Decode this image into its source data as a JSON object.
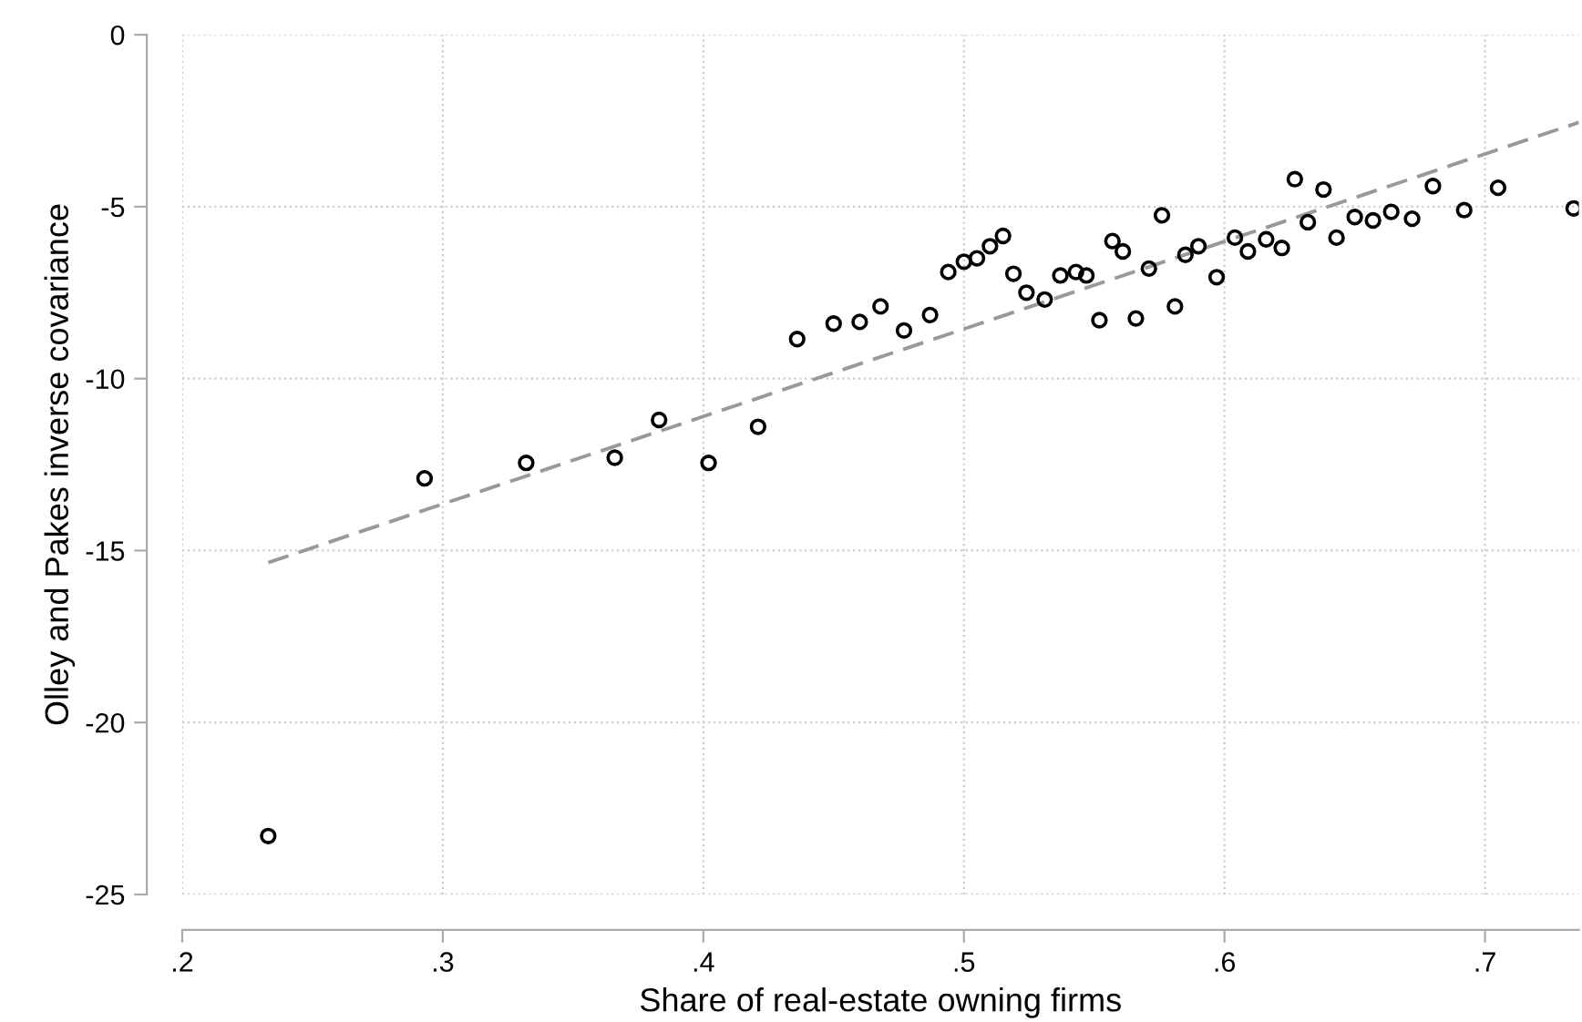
{
  "chart_data": {
    "type": "scatter",
    "xlabel": "Share of real-estate owning firms",
    "ylabel": "Olley and Pakes inverse covariance",
    "xlim": [
      0.2,
      0.736
    ],
    "xticks": [
      {
        "value": 0.2,
        "label": ".2"
      },
      {
        "value": 0.3,
        "label": ".3"
      },
      {
        "value": 0.4,
        "label": ".4"
      },
      {
        "value": 0.5,
        "label": ".5"
      },
      {
        "value": 0.6,
        "label": ".6"
      },
      {
        "value": 0.7,
        "label": ".7"
      }
    ],
    "ylim": [
      -25,
      0
    ],
    "yticks": [
      0,
      -5,
      -10,
      -15,
      -20,
      -25
    ],
    "grid": true,
    "legend": false,
    "series": [
      {
        "marker": "circle",
        "color": "#000000",
        "x": [
          0.233,
          0.293,
          0.332,
          0.366,
          0.383,
          0.402,
          0.421,
          0.436,
          0.45,
          0.46,
          0.468,
          0.477,
          0.487,
          0.494,
          0.5,
          0.505,
          0.51,
          0.515,
          0.519,
          0.524,
          0.531,
          0.537,
          0.543,
          0.547,
          0.552,
          0.557,
          0.561,
          0.566,
          0.571,
          0.576,
          0.581,
          0.585,
          0.59,
          0.597,
          0.604,
          0.609,
          0.616,
          0.622,
          0.627,
          0.632,
          0.638,
          0.643,
          0.65,
          0.657,
          0.664,
          0.672,
          0.68,
          0.692,
          0.705,
          0.734
        ],
        "values": [
          -23.3,
          -12.9,
          -12.45,
          -12.3,
          -11.2,
          -12.45,
          -11.4,
          -8.85,
          -8.4,
          -8.35,
          -7.9,
          -8.6,
          -8.15,
          -6.9,
          -6.6,
          -6.5,
          -6.15,
          -5.85,
          -6.95,
          -7.5,
          -7.7,
          -7.0,
          -6.9,
          -7.0,
          -8.3,
          -6.0,
          -6.3,
          -8.25,
          -6.8,
          -5.25,
          -7.9,
          -6.4,
          -6.15,
          -7.05,
          -5.9,
          -6.3,
          -5.95,
          -6.2,
          -4.2,
          -5.45,
          -4.5,
          -5.9,
          -5.3,
          -5.4,
          -5.15,
          -5.35,
          -4.4,
          -5.1,
          -4.45,
          -5.05
        ]
      },
      {
        "type": "line",
        "line_style": "dashed",
        "color": "#999999",
        "x": [
          0.233,
          0.736
        ],
        "values": [
          -15.35,
          -2.55
        ]
      }
    ]
  }
}
